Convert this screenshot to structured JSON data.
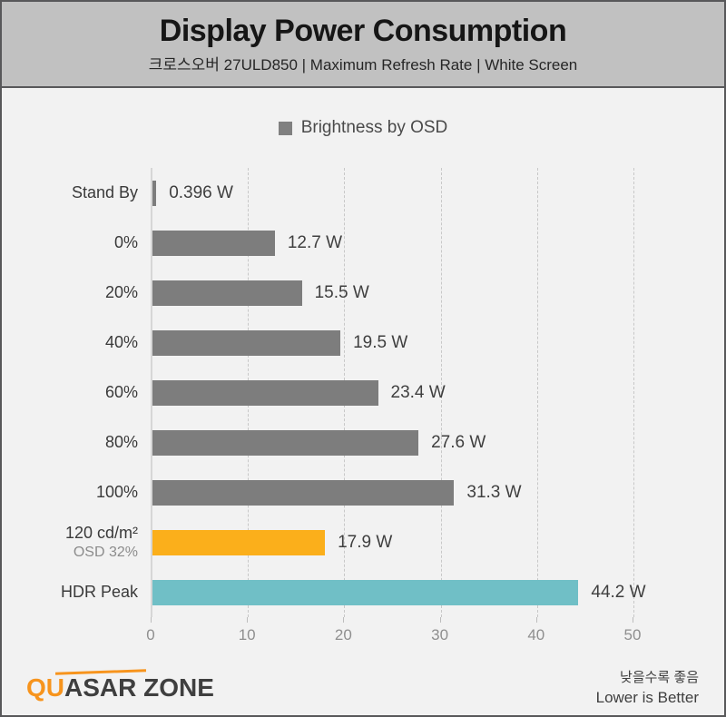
{
  "header": {
    "title": "Display Power Consumption",
    "subtitle": "크로스오버 27ULD850  |  Maximum Refresh Rate  |  White Screen"
  },
  "legend": {
    "label": "Brightness by OSD",
    "marker_color": "#808080"
  },
  "chart_data": {
    "type": "bar",
    "orientation": "horizontal",
    "title": "Display Power Consumption",
    "unit": "W",
    "legend_entries": [
      "Brightness by OSD"
    ],
    "legend_position": "top-center",
    "grid": true,
    "xlim": [
      0,
      50
    ],
    "x_ticks": [
      0,
      10,
      20,
      30,
      40,
      50
    ],
    "rows": [
      {
        "label": "Stand By",
        "sublabel": "",
        "value": 0.396,
        "display": "0.396 W",
        "color": "#7d7d7d"
      },
      {
        "label": "0%",
        "sublabel": "",
        "value": 12.7,
        "display": "12.7 W",
        "color": "#7d7d7d"
      },
      {
        "label": "20%",
        "sublabel": "",
        "value": 15.5,
        "display": "15.5 W",
        "color": "#7d7d7d"
      },
      {
        "label": "40%",
        "sublabel": "",
        "value": 19.5,
        "display": "19.5 W",
        "color": "#7d7d7d"
      },
      {
        "label": "60%",
        "sublabel": "",
        "value": 23.4,
        "display": "23.4 W",
        "color": "#7d7d7d"
      },
      {
        "label": "80%",
        "sublabel": "",
        "value": 27.6,
        "display": "27.6 W",
        "color": "#7d7d7d"
      },
      {
        "label": "100%",
        "sublabel": "",
        "value": 31.3,
        "display": "31.3 W",
        "color": "#7d7d7d"
      },
      {
        "label": "120 cd/m²",
        "sublabel": "OSD 32%",
        "value": 17.9,
        "display": "17.9 W",
        "color": "#fbaf1b"
      },
      {
        "label": "HDR Peak",
        "sublabel": "",
        "value": 44.2,
        "display": "44.2 W",
        "color": "#70bfc6"
      }
    ]
  },
  "colors": {
    "bar_gray": "#7d7d7d",
    "bar_orange": "#fbaf1b",
    "bar_teal": "#70bfc6",
    "header_bg": "#c1c1c1",
    "body_bg": "#f2f2f2",
    "logo_orange": "#f7941d",
    "logo_dark": "#3f3f3f"
  },
  "footer": {
    "logo_text_orange": "QU",
    "logo_text_dark": "ASAR ZONE",
    "note_korean": "낮을수록 좋음",
    "note_english": "Lower is Better"
  }
}
